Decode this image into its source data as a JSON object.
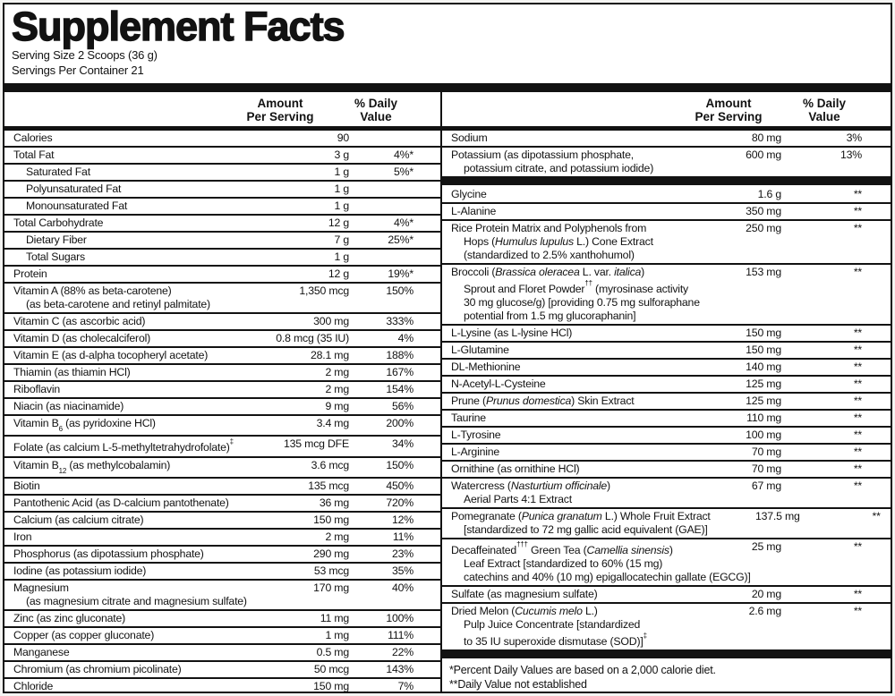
{
  "title": "Supplement Facts",
  "serving": {
    "size_label": "Serving Size 2 Scoops (36 g)",
    "container_label": "Servings Per Container 21"
  },
  "header": {
    "amount_line1": "Amount",
    "amount_line2": "Per Serving",
    "dv_line1": "% Daily",
    "dv_line2": "Value"
  },
  "footnotes": [
    "*Percent Daily Values are based on a 2,000 calorie diet.",
    "**Daily Value not established"
  ],
  "colors": {
    "ink": "#121212",
    "paper": "#ffffff"
  },
  "columns": {
    "left": {
      "items": [
        {
          "lines": [
            "Calories"
          ],
          "amount": "90",
          "dv": ""
        },
        {
          "lines": [
            "Total Fat"
          ],
          "amount": "3 g",
          "dv": "4%*"
        },
        {
          "lines": [
            "Saturated Fat"
          ],
          "amount": "1 g",
          "dv": "5%*",
          "indent": true
        },
        {
          "lines": [
            "Polyunsaturated Fat"
          ],
          "amount": "1 g",
          "dv": "",
          "indent": true
        },
        {
          "lines": [
            "Monounsaturated Fat"
          ],
          "amount": "1 g",
          "dv": "",
          "indent": true
        },
        {
          "lines": [
            "Total Carbohydrate"
          ],
          "amount": "12 g",
          "dv": "4%*"
        },
        {
          "lines": [
            "Dietary Fiber"
          ],
          "amount": "7 g",
          "dv": "25%*",
          "indent": true
        },
        {
          "lines": [
            "Total Sugars"
          ],
          "amount": "1 g",
          "dv": "",
          "indent": true
        },
        {
          "lines": [
            "Protein"
          ],
          "amount": "12 g",
          "dv": "19%*"
        },
        {
          "lines": [
            "Vitamin A (88% as beta-carotene)",
            "(as beta-carotene and retinyl palmitate)"
          ],
          "amount": "1,350 mcg",
          "dv": "150%"
        },
        {
          "lines": [
            "Vitamin C (as ascorbic acid)"
          ],
          "amount": "300 mg",
          "dv": "333%"
        },
        {
          "lines": [
            "Vitamin D (as cholecalciferol)"
          ],
          "amount": "0.8 mcg (35 IU)",
          "dv": "4%"
        },
        {
          "lines": [
            "Vitamin E (as d-alpha tocopheryl acetate)"
          ],
          "amount": "28.1 mg",
          "dv": "188%"
        },
        {
          "lines": [
            "Thiamin (as thiamin HCl)"
          ],
          "amount": "2 mg",
          "dv": "167%"
        },
        {
          "lines": [
            "Riboflavin"
          ],
          "amount": "2 mg",
          "dv": "154%"
        },
        {
          "lines": [
            "Niacin (as niacinamide)"
          ],
          "amount": "9 mg",
          "dv": "56%"
        },
        {
          "lines": [
            [
              {
                "t": "Vitamin B"
              },
              {
                "t": "6",
                "s": "sub"
              },
              {
                "t": " (as pyridoxine HCl)"
              }
            ]
          ],
          "amount": "3.4 mg",
          "dv": "200%"
        },
        {
          "lines": [
            [
              {
                "t": "Folate (as calcium L-5-methyltetrahydrofolate)"
              },
              {
                "t": "‡",
                "s": "sup"
              }
            ]
          ],
          "amount": "135 mcg DFE",
          "dv": "34%"
        },
        {
          "lines": [
            [
              {
                "t": "Vitamin B"
              },
              {
                "t": "12",
                "s": "sub"
              },
              {
                "t": " (as methylcobalamin)"
              }
            ]
          ],
          "amount": "3.6 mcg",
          "dv": "150%"
        },
        {
          "lines": [
            "Biotin"
          ],
          "amount": "135 mcg",
          "dv": "450%"
        },
        {
          "lines": [
            "Pantothenic Acid (as D-calcium pantothenate)"
          ],
          "amount": "36 mg",
          "dv": "720%"
        },
        {
          "lines": [
            "Calcium (as calcium citrate)"
          ],
          "amount": "150 mg",
          "dv": "12%"
        },
        {
          "lines": [
            "Iron"
          ],
          "amount": "2 mg",
          "dv": "11%"
        },
        {
          "lines": [
            "Phosphorus (as dipotassium phosphate)"
          ],
          "amount": "290 mg",
          "dv": "23%"
        },
        {
          "lines": [
            "Iodine (as potassium iodide)"
          ],
          "amount": "53 mcg",
          "dv": "35%"
        },
        {
          "lines": [
            "Magnesium",
            "(as magnesium citrate and magnesium sulfate)"
          ],
          "amount": "170 mg",
          "dv": "40%"
        },
        {
          "lines": [
            "Zinc (as zinc gluconate)"
          ],
          "amount": "11 mg",
          "dv": "100%"
        },
        {
          "lines": [
            "Copper (as copper gluconate)"
          ],
          "amount": "1 mg",
          "dv": "111%"
        },
        {
          "lines": [
            "Manganese"
          ],
          "amount": "0.5 mg",
          "dv": "22%"
        },
        {
          "lines": [
            "Chromium (as chromium picolinate)"
          ],
          "amount": "50 mcg",
          "dv": "143%"
        },
        {
          "lines": [
            "Chloride"
          ],
          "amount": "150 mg",
          "dv": "7%"
        }
      ]
    },
    "right": {
      "items": [
        {
          "lines": [
            "Sodium"
          ],
          "amount": "80 mg",
          "dv": "3%"
        },
        {
          "lines": [
            "Potassium (as dipotassium phosphate,",
            "potassium citrate, and potassium iodide)"
          ],
          "amount": "600 mg",
          "dv": "13%",
          "noborder": true
        },
        {
          "bar": true
        },
        {
          "lines": [
            "Glycine"
          ],
          "amount": "1.6 g",
          "dv": "**"
        },
        {
          "lines": [
            "L-Alanine"
          ],
          "amount": "350 mg",
          "dv": "**"
        },
        {
          "lines": [
            "Rice Protein Matrix and Polyphenols from",
            [
              {
                "t": "Hops ("
              },
              {
                "t": "Humulus lupulus",
                "s": "i"
              },
              {
                "t": " L.) Cone Extract"
              }
            ],
            "(standardized to 2.5% xanthohumol)"
          ],
          "amount": "250 mg",
          "dv": "**"
        },
        {
          "lines": [
            [
              {
                "t": "Broccoli ("
              },
              {
                "t": "Brassica oleracea",
                "s": "i"
              },
              {
                "t": " L. var. "
              },
              {
                "t": "italica",
                "s": "i"
              },
              {
                "t": ")"
              }
            ],
            [
              {
                "t": "Sprout and Floret Powder"
              },
              {
                "t": "††",
                "s": "sup"
              },
              {
                "t": " (myrosinase activity"
              }
            ],
            "30 mg glucose/g) [providing 0.75 mg sulforaphane",
            "potential from 1.5 mg glucoraphanin]"
          ],
          "amount": "153 mg",
          "dv": "**"
        },
        {
          "lines": [
            "L-Lysine (as L-lysine HCl)"
          ],
          "amount": "150 mg",
          "dv": "**"
        },
        {
          "lines": [
            "L-Glutamine"
          ],
          "amount": "150 mg",
          "dv": "**"
        },
        {
          "lines": [
            "DL-Methionine"
          ],
          "amount": "140 mg",
          "dv": "**"
        },
        {
          "lines": [
            "N-Acetyl-L-Cysteine"
          ],
          "amount": "125 mg",
          "dv": "**"
        },
        {
          "lines": [
            [
              {
                "t": "Prune ("
              },
              {
                "t": "Prunus domestica",
                "s": "i"
              },
              {
                "t": ") Skin Extract"
              }
            ]
          ],
          "amount": "125 mg",
          "dv": "**"
        },
        {
          "lines": [
            "Taurine"
          ],
          "amount": "110 mg",
          "dv": "**"
        },
        {
          "lines": [
            "L-Tyrosine"
          ],
          "amount": "100 mg",
          "dv": "**"
        },
        {
          "lines": [
            "L-Arginine"
          ],
          "amount": "70 mg",
          "dv": "**"
        },
        {
          "lines": [
            "Ornithine (as ornithine HCl)"
          ],
          "amount": "70 mg",
          "dv": "**"
        },
        {
          "lines": [
            [
              {
                "t": "Watercress ("
              },
              {
                "t": "Nasturtium officinale",
                "s": "i"
              },
              {
                "t": ")"
              }
            ],
            "Aerial Parts 4:1 Extract"
          ],
          "amount": "67 mg",
          "dv": "**"
        },
        {
          "lines": [
            [
              {
                "t": "Pomegranate ("
              },
              {
                "t": "Punica granatum",
                "s": "i"
              },
              {
                "t": " L.) Whole Fruit Extract"
              }
            ],
            "[standardized to 72 mg gallic acid equivalent (GAE)]"
          ],
          "amount": "137.5 mg",
          "dv": "**"
        },
        {
          "lines": [
            [
              {
                "t": "Decaffeinated"
              },
              {
                "t": "†††",
                "s": "sup"
              },
              {
                "t": " Green Tea ("
              },
              {
                "t": "Camellia sinensis",
                "s": "i"
              },
              {
                "t": ")"
              }
            ],
            "Leaf Extract [standardized to 60% (15 mg)",
            "catechins and 40% (10 mg) epigallocatechin gallate (EGCG)]"
          ],
          "amount": "25 mg",
          "dv": "**"
        },
        {
          "lines": [
            "Sulfate (as magnesium sulfate)"
          ],
          "amount": "20 mg",
          "dv": "**"
        },
        {
          "lines": [
            [
              {
                "t": "Dried Melon ("
              },
              {
                "t": "Cucumis melo",
                "s": "i"
              },
              {
                "t": " L.)"
              }
            ],
            "Pulp Juice Concentrate [standardized",
            [
              {
                "t": "to 35 IU superoxide dismutase (SOD)]"
              },
              {
                "t": "‡",
                "s": "sup"
              }
            ]
          ],
          "amount": "2.6 mg",
          "dv": "**",
          "noborder": true
        },
        {
          "bar": true
        }
      ]
    }
  }
}
